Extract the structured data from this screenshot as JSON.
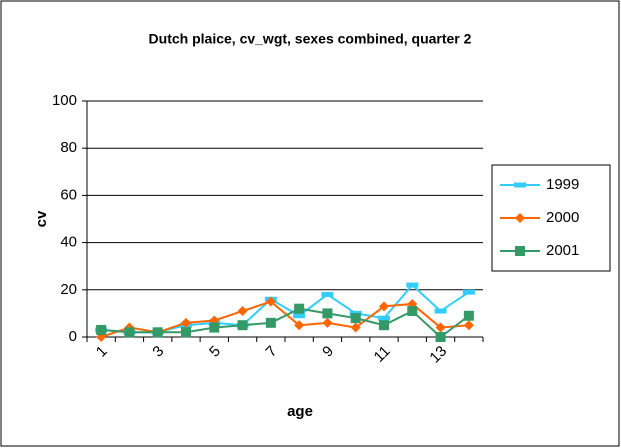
{
  "chart_data": {
    "type": "line",
    "title": "Dutch plaice, cv_wgt, sexes combined, quarter 2",
    "x_label": "age",
    "y_label": "cv",
    "categories": [
      "1",
      null,
      "3",
      null,
      "5",
      null,
      "7",
      null,
      "9",
      null,
      "11",
      null,
      "13",
      null
    ],
    "series": [
      {
        "name": "1999",
        "color": "#33ccff",
        "marker": "dash",
        "values": [
          3,
          2,
          2,
          5,
          6,
          5,
          16,
          9,
          18,
          10,
          8,
          22,
          11,
          19
        ]
      },
      {
        "name": "2000",
        "color": "#ff6600",
        "marker": "diamond",
        "values": [
          0,
          4,
          2,
          6,
          7,
          11,
          15,
          5,
          6,
          4,
          13,
          14,
          4,
          5
        ]
      },
      {
        "name": "2001",
        "color": "#339966",
        "marker": "square",
        "values": [
          3,
          2,
          2,
          2,
          4,
          5,
          6,
          12,
          10,
          8,
          5,
          11,
          0,
          9
        ]
      }
    ],
    "ylim": [
      0,
      100
    ],
    "yticks": [
      0,
      20,
      40,
      60,
      80,
      100
    ],
    "grid": true,
    "legend": "right"
  }
}
